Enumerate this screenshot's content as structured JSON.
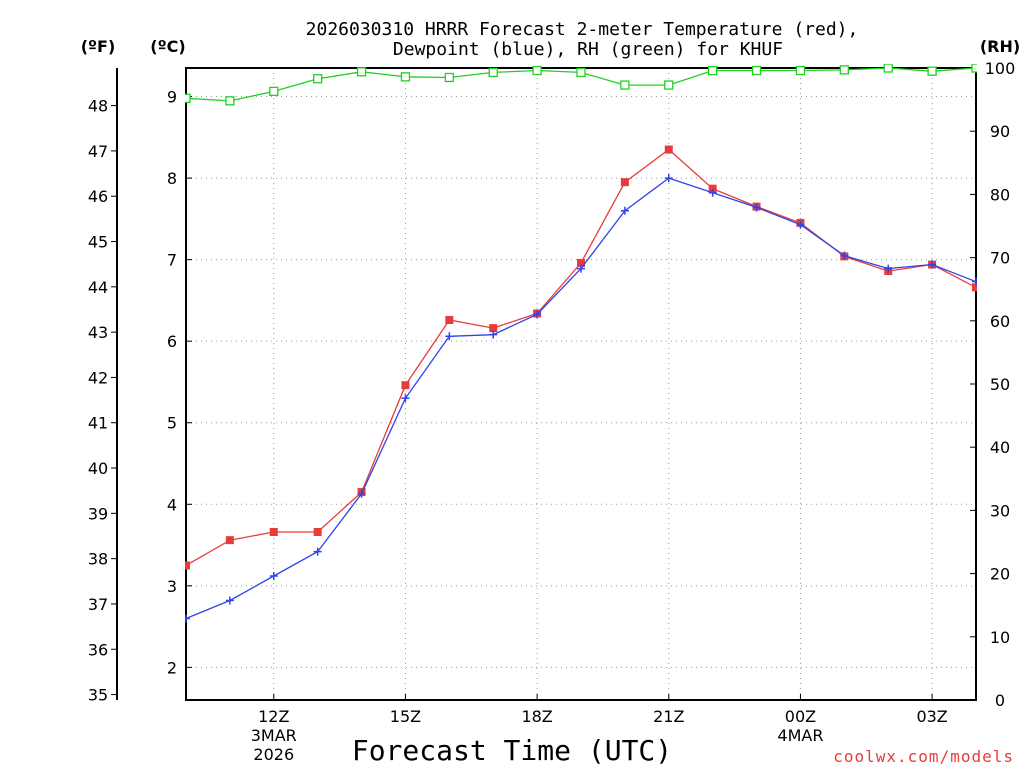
{
  "chart_data": {
    "type": "line",
    "title": "2026030310 HRRR Forecast 2-meter Temperature (red),",
    "subtitle": "Dewpoint (blue), RH (green) for KHUF",
    "xlabel": "Forecast Time (UTC)",
    "credit": "coolwx.com/models",
    "units": {
      "fahrenheit": "(ºF)",
      "celsius": "(ºC)",
      "rh": "(RH)"
    },
    "hours": [
      10,
      11,
      12,
      13,
      14,
      15,
      16,
      17,
      18,
      19,
      20,
      21,
      22,
      23,
      24,
      25,
      26,
      27,
      28
    ],
    "xlim": [
      10,
      28
    ],
    "x_ticks": [
      {
        "hour": 12,
        "label": "12Z",
        "sub1": "3MAR",
        "sub2": "2026"
      },
      {
        "hour": 15,
        "label": "15Z",
        "sub1": "",
        "sub2": ""
      },
      {
        "hour": 18,
        "label": "18Z",
        "sub1": "",
        "sub2": ""
      },
      {
        "hour": 21,
        "label": "21Z",
        "sub1": "",
        "sub2": ""
      },
      {
        "hour": 24,
        "label": "00Z",
        "sub1": "4MAR",
        "sub2": ""
      },
      {
        "hour": 27,
        "label": "03Z",
        "sub1": "",
        "sub2": ""
      }
    ],
    "ylim_celsius": [
      1.6,
      9.35
    ],
    "ylim_rh": [
      0,
      100
    ],
    "celsius_ticks": [
      "2",
      "3",
      "4",
      "5",
      "6",
      "7",
      "8",
      "9"
    ],
    "fahrenheit_ticks": [
      "35",
      "36",
      "37",
      "38",
      "39",
      "40",
      "41",
      "42",
      "43",
      "44",
      "45",
      "46",
      "47",
      "48"
    ],
    "rh_ticks": [
      "0",
      "10",
      "20",
      "30",
      "40",
      "50",
      "60",
      "70",
      "80",
      "90",
      "100"
    ],
    "series": [
      {
        "name": "Temperature",
        "color": "#e83c3c",
        "marker": "filled-square",
        "values": [
          3.25,
          3.56,
          3.66,
          3.66,
          4.15,
          5.46,
          6.26,
          6.16,
          6.34,
          6.96,
          7.95,
          8.35,
          7.87,
          7.65,
          7.45,
          7.04,
          6.86,
          6.94,
          6.66
        ]
      },
      {
        "name": "Dewpoint",
        "color": "#3044e8",
        "marker": "plus",
        "values": [
          2.6,
          2.82,
          3.12,
          3.42,
          4.13,
          5.3,
          6.06,
          6.08,
          6.33,
          6.89,
          7.6,
          8.0,
          7.82,
          7.64,
          7.43,
          7.05,
          6.89,
          6.94,
          6.73
        ]
      },
      {
        "name": "RH",
        "color": "#1ed21e",
        "marker": "open-square",
        "axis": "rh",
        "values": [
          95.2,
          94.8,
          96.3,
          98.3,
          99.4,
          98.6,
          98.5,
          99.3,
          99.6,
          99.3,
          97.3,
          97.3,
          99.6,
          99.6,
          99.6,
          99.7,
          100,
          99.5,
          100
        ]
      }
    ]
  }
}
